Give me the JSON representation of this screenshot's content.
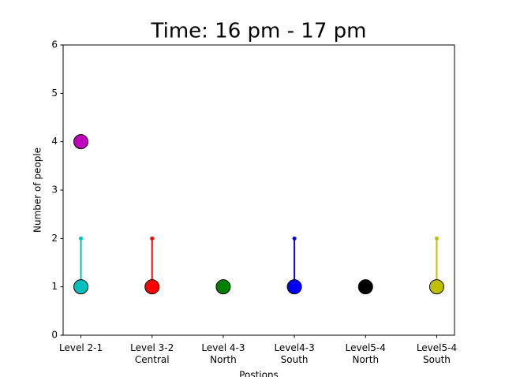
{
  "chart_data": {
    "type": "stem",
    "title": "Time: 16 pm - 17 pm",
    "x_label": "Postions",
    "y_label": "Number of people",
    "categories": [
      [
        "Level 2-1"
      ],
      [
        "Level 3-2",
        "Central"
      ],
      [
        "Level 4-3",
        "North"
      ],
      [
        "Level4-3",
        "South"
      ],
      [
        "Level5-4",
        "North"
      ],
      [
        "Level5-4",
        "South"
      ]
    ],
    "series": [
      {
        "colors": [
          "#00bfbf",
          "#ff0000",
          "#008000",
          "#0000ff",
          "#000000",
          "#bfbf00"
        ],
        "values": [
          1,
          1,
          1,
          1,
          1,
          1
        ]
      },
      {
        "colors": [
          "#00bfbf",
          "#ff0000",
          "#008000",
          "#0000ff",
          "#000000",
          "#bfbf00"
        ],
        "values": [
          2,
          2,
          null,
          2,
          null,
          2
        ]
      },
      {
        "colors": [
          "#bf00bf",
          "#bf00bf",
          "#bf00bf",
          "#bf00bf",
          "#bf00bf",
          "#bf00bf"
        ],
        "values": [
          4,
          null,
          null,
          null,
          null,
          null
        ]
      }
    ],
    "ylim": [
      0,
      6
    ],
    "yticks": [
      0,
      1,
      2,
      3,
      4,
      5,
      6
    ]
  }
}
